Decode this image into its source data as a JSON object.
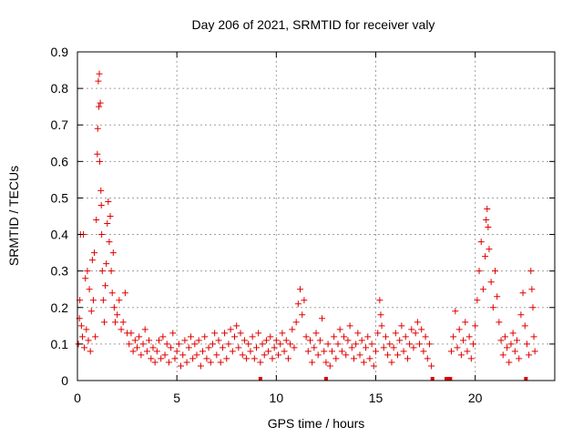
{
  "chart_data": {
    "type": "scatter",
    "title": "Day 206 of 2021, SRMTID for receiver valy",
    "xlabel": "GPS time / hours",
    "ylabel": "SRMTID / TECUs",
    "xlim": [
      0,
      24
    ],
    "ylim": [
      0,
      0.9
    ],
    "xticks": [
      0,
      5,
      10,
      15,
      20
    ],
    "yticks": [
      0,
      0.1,
      0.2,
      0.3,
      0.4,
      0.5,
      0.6,
      0.7,
      0.8,
      0.9
    ],
    "grid": true,
    "marker": "+",
    "color": "#e00000",
    "series": [
      {
        "name": "SRMTID",
        "points": [
          [
            0.05,
            0.1
          ],
          [
            0.1,
            0.17
          ],
          [
            0.12,
            0.22
          ],
          [
            0.15,
            0.4
          ],
          [
            0.2,
            0.15
          ],
          [
            0.25,
            0.12
          ],
          [
            0.3,
            0.4
          ],
          [
            0.35,
            0.09
          ],
          [
            0.4,
            0.28
          ],
          [
            0.45,
            0.14
          ],
          [
            0.5,
            0.3
          ],
          [
            0.55,
            0.11
          ],
          [
            0.6,
            0.25
          ],
          [
            0.65,
            0.08
          ],
          [
            0.7,
            0.19
          ],
          [
            0.75,
            0.33
          ],
          [
            0.8,
            0.22
          ],
          [
            0.85,
            0.35
          ],
          [
            0.9,
            0.12
          ],
          [
            0.95,
            0.44
          ],
          [
            1.0,
            0.62
          ],
          [
            1.02,
            0.69
          ],
          [
            1.05,
            0.82
          ],
          [
            1.08,
            0.75
          ],
          [
            1.1,
            0.84
          ],
          [
            1.12,
            0.6
          ],
          [
            1.15,
            0.76
          ],
          [
            1.18,
            0.52
          ],
          [
            1.2,
            0.48
          ],
          [
            1.22,
            0.4
          ],
          [
            1.25,
            0.3
          ],
          [
            1.3,
            0.22
          ],
          [
            1.35,
            0.16
          ],
          [
            1.4,
            0.26
          ],
          [
            1.45,
            0.32
          ],
          [
            1.5,
            0.43
          ],
          [
            1.55,
            0.49
          ],
          [
            1.6,
            0.38
          ],
          [
            1.65,
            0.45
          ],
          [
            1.7,
            0.3
          ],
          [
            1.75,
            0.24
          ],
          [
            1.8,
            0.35
          ],
          [
            1.85,
            0.2
          ],
          [
            1.9,
            0.16
          ],
          [
            2.0,
            0.18
          ],
          [
            2.1,
            0.22
          ],
          [
            2.2,
            0.14
          ],
          [
            2.3,
            0.16
          ],
          [
            2.4,
            0.24
          ],
          [
            2.5,
            0.13
          ],
          [
            2.6,
            0.1
          ],
          [
            2.7,
            0.13
          ],
          [
            2.8,
            0.08
          ],
          [
            2.9,
            0.11
          ],
          [
            3.0,
            0.09
          ],
          [
            3.1,
            0.12
          ],
          [
            3.2,
            0.07
          ],
          [
            3.3,
            0.1
          ],
          [
            3.4,
            0.14
          ],
          [
            3.5,
            0.08
          ],
          [
            3.6,
            0.11
          ],
          [
            3.7,
            0.06
          ],
          [
            3.8,
            0.09
          ],
          [
            3.9,
            0.05
          ],
          [
            4.0,
            0.08
          ],
          [
            4.1,
            0.11
          ],
          [
            4.2,
            0.06
          ],
          [
            4.3,
            0.12
          ],
          [
            4.4,
            0.07
          ],
          [
            4.5,
            0.1
          ],
          [
            4.6,
            0.05
          ],
          [
            4.7,
            0.09
          ],
          [
            4.8,
            0.13
          ],
          [
            4.9,
            0.06
          ],
          [
            5.0,
            0.08
          ],
          [
            5.1,
            0.1
          ],
          [
            5.2,
            0.04
          ],
          [
            5.3,
            0.07
          ],
          [
            5.4,
            0.11
          ],
          [
            5.5,
            0.05
          ],
          [
            5.6,
            0.09
          ],
          [
            5.7,
            0.12
          ],
          [
            5.8,
            0.06
          ],
          [
            5.9,
            0.1
          ],
          [
            6.0,
            0.07
          ],
          [
            6.1,
            0.11
          ],
          [
            6.2,
            0.04
          ],
          [
            6.3,
            0.08
          ],
          [
            6.4,
            0.12
          ],
          [
            6.5,
            0.06
          ],
          [
            6.6,
            0.09
          ],
          [
            6.7,
            0.05
          ],
          [
            6.8,
            0.1
          ],
          [
            6.9,
            0.13
          ],
          [
            7.0,
            0.07
          ],
          [
            7.1,
            0.11
          ],
          [
            7.2,
            0.05
          ],
          [
            7.3,
            0.09
          ],
          [
            7.4,
            0.13
          ],
          [
            7.5,
            0.06
          ],
          [
            7.6,
            0.1
          ],
          [
            7.7,
            0.14
          ],
          [
            7.8,
            0.08
          ],
          [
            7.9,
            0.12
          ],
          [
            8.0,
            0.15
          ],
          [
            8.1,
            0.09
          ],
          [
            8.2,
            0.13
          ],
          [
            8.3,
            0.07
          ],
          [
            8.4,
            0.11
          ],
          [
            8.5,
            0.06
          ],
          [
            8.6,
            0.1
          ],
          [
            8.7,
            0.08
          ],
          [
            8.8,
            0.12
          ],
          [
            8.9,
            0.06
          ],
          [
            9.0,
            0.09
          ],
          [
            9.1,
            0.13
          ],
          [
            9.2,
            0.05
          ],
          [
            9.3,
            0.1
          ],
          [
            9.4,
            0.07
          ],
          [
            9.5,
            0.11
          ],
          [
            9.6,
            0.08
          ],
          [
            9.7,
            0.12
          ],
          [
            9.8,
            0.06
          ],
          [
            9.9,
            0.09
          ],
          [
            10.0,
            0.11
          ],
          [
            10.1,
            0.07
          ],
          [
            10.2,
            0.1
          ],
          [
            10.3,
            0.13
          ],
          [
            10.4,
            0.08
          ],
          [
            10.5,
            0.11
          ],
          [
            10.6,
            0.06
          ],
          [
            10.7,
            0.1
          ],
          [
            10.8,
            0.14
          ],
          [
            10.9,
            0.09
          ],
          [
            11.0,
            0.16
          ],
          [
            11.1,
            0.21
          ],
          [
            11.2,
            0.25
          ],
          [
            11.3,
            0.18
          ],
          [
            11.4,
            0.22
          ],
          [
            11.5,
            0.12
          ],
          [
            11.6,
            0.08
          ],
          [
            11.7,
            0.11
          ],
          [
            11.8,
            0.05
          ],
          [
            11.9,
            0.09
          ],
          [
            12.0,
            0.13
          ],
          [
            12.1,
            0.07
          ],
          [
            12.2,
            0.11
          ],
          [
            12.3,
            0.17
          ],
          [
            12.4,
            0.08
          ],
          [
            12.5,
            0.05
          ],
          [
            12.6,
            0.1
          ],
          [
            12.7,
            0.04
          ],
          [
            12.8,
            0.08
          ],
          [
            12.9,
            0.12
          ],
          [
            13.0,
            0.06
          ],
          [
            13.1,
            0.1
          ],
          [
            13.2,
            0.14
          ],
          [
            13.3,
            0.08
          ],
          [
            13.4,
            0.12
          ],
          [
            13.5,
            0.07
          ],
          [
            13.6,
            0.11
          ],
          [
            13.7,
            0.15
          ],
          [
            13.8,
            0.09
          ],
          [
            13.9,
            0.06
          ],
          [
            14.0,
            0.1
          ],
          [
            14.1,
            0.13
          ],
          [
            14.2,
            0.07
          ],
          [
            14.3,
            0.11
          ],
          [
            14.4,
            0.05
          ],
          [
            14.5,
            0.09
          ],
          [
            14.6,
            0.12
          ],
          [
            14.7,
            0.06
          ],
          [
            14.8,
            0.1
          ],
          [
            14.9,
            0.04
          ],
          [
            15.0,
            0.08
          ],
          [
            15.1,
            0.13
          ],
          [
            15.2,
            0.22
          ],
          [
            15.25,
            0.18
          ],
          [
            15.3,
            0.15
          ],
          [
            15.4,
            0.09
          ],
          [
            15.5,
            0.12
          ],
          [
            15.6,
            0.07
          ],
          [
            15.7,
            0.1
          ],
          [
            15.8,
            0.05
          ],
          [
            15.9,
            0.09
          ],
          [
            16.0,
            0.13
          ],
          [
            16.1,
            0.07
          ],
          [
            16.2,
            0.11
          ],
          [
            16.3,
            0.15
          ],
          [
            16.4,
            0.08
          ],
          [
            16.5,
            0.12
          ],
          [
            16.6,
            0.06
          ],
          [
            16.7,
            0.1
          ],
          [
            16.8,
            0.14
          ],
          [
            16.9,
            0.09
          ],
          [
            17.0,
            0.13
          ],
          [
            17.1,
            0.16
          ],
          [
            17.2,
            0.1
          ],
          [
            17.3,
            0.14
          ],
          [
            17.4,
            0.08
          ],
          [
            17.5,
            0.12
          ],
          [
            17.6,
            0.06
          ],
          [
            17.7,
            0.1
          ],
          [
            17.8,
            0.04
          ],
          [
            18.8,
            0.08
          ],
          [
            18.9,
            0.12
          ],
          [
            19.0,
            0.19
          ],
          [
            19.1,
            0.09
          ],
          [
            19.2,
            0.14
          ],
          [
            19.3,
            0.07
          ],
          [
            19.4,
            0.11
          ],
          [
            19.5,
            0.16
          ],
          [
            19.6,
            0.08
          ],
          [
            19.7,
            0.12
          ],
          [
            19.8,
            0.06
          ],
          [
            19.9,
            0.1
          ],
          [
            20.0,
            0.15
          ],
          [
            20.1,
            0.22
          ],
          [
            20.2,
            0.3
          ],
          [
            20.3,
            0.38
          ],
          [
            20.4,
            0.25
          ],
          [
            20.5,
            0.34
          ],
          [
            20.55,
            0.44
          ],
          [
            20.6,
            0.47
          ],
          [
            20.65,
            0.42
          ],
          [
            20.7,
            0.36
          ],
          [
            20.8,
            0.27
          ],
          [
            20.9,
            0.2
          ],
          [
            21.0,
            0.3
          ],
          [
            21.1,
            0.23
          ],
          [
            21.2,
            0.16
          ],
          [
            21.3,
            0.11
          ],
          [
            21.4,
            0.07
          ],
          [
            21.5,
            0.12
          ],
          [
            21.6,
            0.09
          ],
          [
            21.7,
            0.05
          ],
          [
            21.8,
            0.1
          ],
          [
            21.9,
            0.13
          ],
          [
            22.0,
            0.08
          ],
          [
            22.1,
            0.11
          ],
          [
            22.2,
            0.06
          ],
          [
            22.3,
            0.18
          ],
          [
            22.4,
            0.24
          ],
          [
            22.5,
            0.15
          ],
          [
            22.6,
            0.1
          ],
          [
            22.7,
            0.07
          ],
          [
            22.8,
            0.3
          ],
          [
            22.85,
            0.25
          ],
          [
            22.9,
            0.2
          ],
          [
            22.95,
            0.12
          ],
          [
            23.0,
            0.08
          ]
        ]
      }
    ],
    "gap_markers_x": [
      9.2,
      12.5,
      17.85,
      18.55,
      18.65,
      18.75,
      22.55
    ]
  }
}
